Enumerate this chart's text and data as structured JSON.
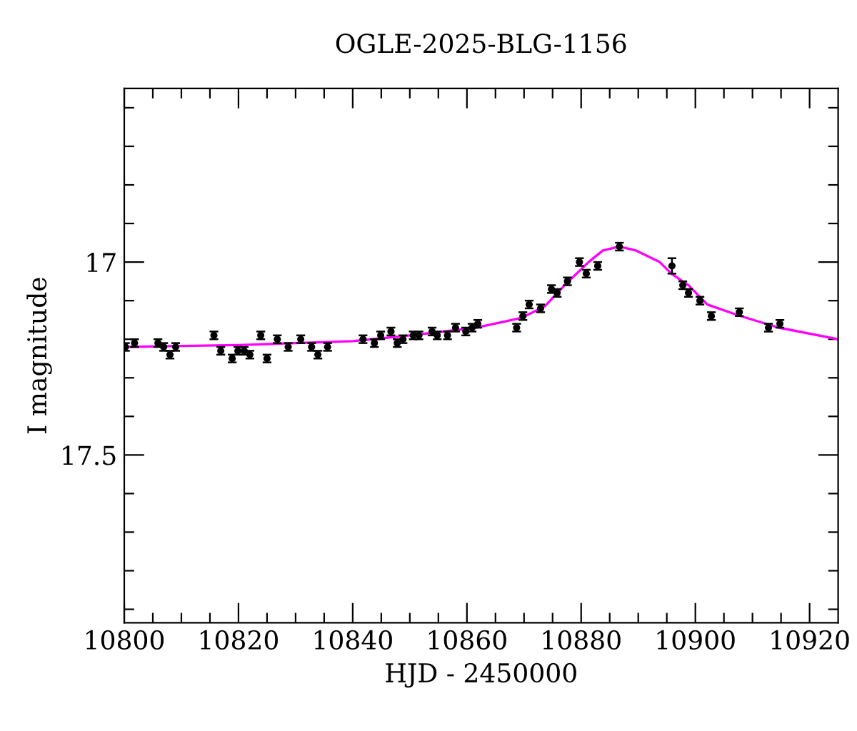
{
  "chart_data": {
    "type": "scatter",
    "title": "OGLE-2025-BLG-1156",
    "xlabel": "HJD - 2450000",
    "ylabel": "I magnitude",
    "xlim": [
      10800,
      10925
    ],
    "ylim": [
      17.935,
      16.55
    ],
    "xticks": [
      10800,
      {
        "value": 10805,
        "label": null
      },
      {
        "value": 10810,
        "label": null
      },
      {
        "value": 10815,
        "label": null
      },
      10820,
      {
        "value": 10825,
        "label": null
      },
      {
        "value": 10830,
        "label": null
      },
      {
        "value": 10835,
        "label": null
      },
      10840,
      {
        "value": 10845,
        "label": null
      },
      {
        "value": 10850,
        "label": null
      },
      {
        "value": 10855,
        "label": null
      },
      10860,
      {
        "value": 10865,
        "label": null
      },
      {
        "value": 10870,
        "label": null
      },
      {
        "value": 10875,
        "label": null
      },
      10880,
      {
        "value": 10885,
        "label": null
      },
      {
        "value": 10890,
        "label": null
      },
      {
        "value": 10895,
        "label": null
      },
      10900,
      {
        "value": 10905,
        "label": null
      },
      {
        "value": 10910,
        "label": null
      },
      {
        "value": 10915,
        "label": null
      },
      10920
    ],
    "yticks": [
      {
        "value": 16.6,
        "label": null
      },
      {
        "value": 16.7,
        "label": null
      },
      {
        "value": 16.8,
        "label": null
      },
      {
        "value": 16.9,
        "label": null
      },
      17,
      {
        "value": 17.1,
        "label": null
      },
      {
        "value": 17.2,
        "label": null
      },
      {
        "value": 17.3,
        "label": null
      },
      {
        "value": 17.4,
        "label": null
      },
      17.5,
      {
        "value": 17.6,
        "label": null
      },
      {
        "value": 17.7,
        "label": null
      },
      {
        "value": 17.8,
        "label": null
      },
      {
        "value": 17.9,
        "label": null
      }
    ],
    "grid": false,
    "legend": false,
    "marker": "circle",
    "series": [
      {
        "color": "#000000",
        "x": [
          10800.2,
          10801.8,
          10805.9,
          10806.9,
          10808,
          10809,
          10815.7,
          10816.9,
          10818.9,
          10819.9,
          10821,
          10822,
          10823.9,
          10825,
          10826.8,
          10828.7,
          10830.9,
          10832.8,
          10833.9,
          10835.6,
          10841.8,
          10843.8,
          10844.9,
          10846.7,
          10847.8,
          10848.8,
          10850.6,
          10851.6,
          10853.9,
          10854.8,
          10856.6,
          10858,
          10859.8,
          10860.9,
          10861.9,
          10868.7,
          10869.8,
          10870.9,
          10872.9,
          10874.8,
          10875.8,
          10877.6,
          10879.7,
          10880.9,
          10882.9,
          10886.7,
          10895.9,
          10897.8,
          10898.8,
          10900.8,
          10902.8,
          10907.7,
          10912.8,
          10914.8
        ],
        "values": [
          17.22,
          17.21,
          17.21,
          17.22,
          17.24,
          17.22,
          17.19,
          17.23,
          17.25,
          17.23,
          17.23,
          17.24,
          17.19,
          17.25,
          17.2,
          17.22,
          17.2,
          17.22,
          17.24,
          17.22,
          17.2,
          17.21,
          17.19,
          17.18,
          17.21,
          17.2,
          17.19,
          17.19,
          17.18,
          17.19,
          17.19,
          17.17,
          17.18,
          17.17,
          17.16,
          17.17,
          17.14,
          17.11,
          17.12,
          17.07,
          17.08,
          17.05,
          17.0,
          17.03,
          17.01,
          16.96,
          17.01,
          17.06,
          17.08,
          17.1,
          17.14,
          17.13,
          17.17,
          17.16
        ],
        "errors": [
          0.01,
          0.01,
          0.01,
          0.01,
          0.01,
          0.01,
          0.01,
          0.01,
          0.01,
          0.01,
          0.01,
          0.01,
          0.01,
          0.01,
          0.01,
          0.01,
          0.01,
          0.01,
          0.01,
          0.01,
          0.01,
          0.01,
          0.01,
          0.01,
          0.01,
          0.01,
          0.01,
          0.01,
          0.01,
          0.01,
          0.01,
          0.01,
          0.01,
          0.01,
          0.01,
          0.01,
          0.01,
          0.01,
          0.01,
          0.01,
          0.01,
          0.01,
          0.01,
          0.01,
          0.01,
          0.01,
          0.02,
          0.01,
          0.01,
          0.01,
          0.01,
          0.01,
          0.01,
          0.01
        ]
      },
      {
        "type": "line",
        "color": "#ff00ff",
        "marker": "none",
        "x": [
          10800,
          10820,
          10840,
          10850,
          10861.7,
          10869.5,
          10873.6,
          10877.1,
          10881.3,
          10883.8,
          10886.7,
          10889.6,
          10893.75,
          10895.8,
          10898.8,
          10902.1,
          10907.9,
          10914.6,
          10925
        ],
        "values": [
          17.22,
          17.215,
          17.205,
          17.19,
          17.17,
          17.145,
          17.115,
          17.06,
          17.0,
          16.97,
          16.96,
          16.97,
          17.0,
          17.03,
          17.06,
          17.11,
          17.14,
          17.17,
          17.2
        ]
      }
    ]
  }
}
